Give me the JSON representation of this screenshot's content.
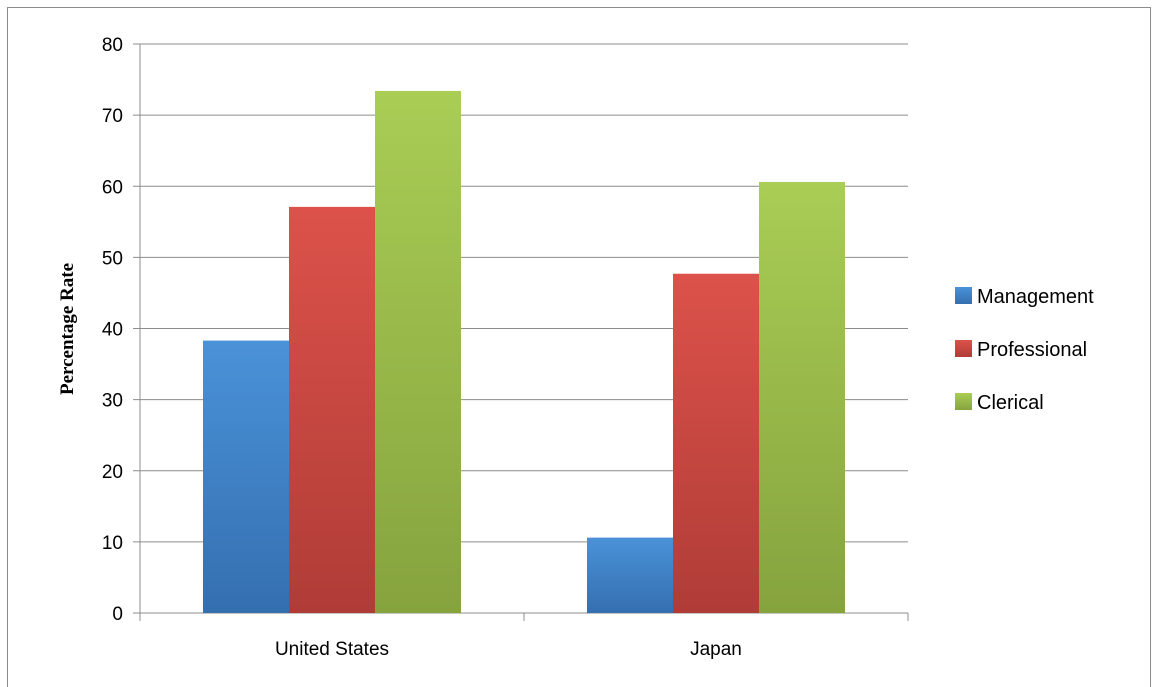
{
  "chart_data": {
    "type": "bar",
    "title": "",
    "xlabel": "",
    "ylabel": "Percentage Rate",
    "categories": [
      "United States",
      "Japan"
    ],
    "series": [
      {
        "name": "Management",
        "values": [
          38.3,
          10.6
        ],
        "color_top": "#4a92d8",
        "color_bottom": "#346fb0"
      },
      {
        "name": "Professional",
        "values": [
          57.1,
          47.7
        ],
        "color_top": "#dc524a",
        "color_bottom": "#b03c37"
      },
      {
        "name": "Clerical",
        "values": [
          73.4,
          60.6
        ],
        "color_top": "#a9cd55",
        "color_bottom": "#86a33e"
      }
    ],
    "ylim": [
      0,
      80
    ],
    "yticks": [
      0,
      10,
      20,
      30,
      40,
      50,
      60,
      70,
      80
    ],
    "grid": true,
    "legend_position": "right"
  }
}
